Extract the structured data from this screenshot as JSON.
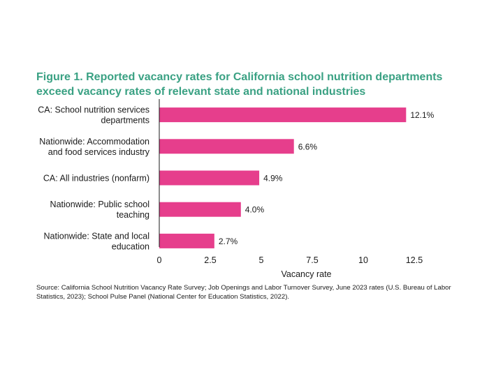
{
  "title_lines": [
    "Figure 1. Reported vacancy rates for California school nutrition departments",
    "exceed vacancy rates of relevant state and national industries"
  ],
  "source": "Source: California School Nutrition Vacancy Rate Survey; Job Openings and Labor Turnover Survey, June 2023 rates (U.S. Bureau of Labor Statistics, 2023); School Pulse Panel (National Center for Education Statistics, 2022).",
  "colors": {
    "bar": "#e63e8c",
    "title": "#3aa183",
    "axis": "#1a1a1a"
  },
  "chart_data": {
    "type": "bar",
    "orientation": "horizontal",
    "categories": [
      [
        "CA: School nutrition services",
        "departments"
      ],
      [
        "Nationwide: Accommodation",
        "and food services industry"
      ],
      [
        "CA: All industries (nonfarm)"
      ],
      [
        "Nationwide: Public school",
        "teaching"
      ],
      [
        "Nationwide: State and local",
        "education"
      ]
    ],
    "values": [
      12.1,
      6.6,
      4.9,
      4.0,
      2.7
    ],
    "value_labels": [
      "12.1%",
      "6.6%",
      "4.9%",
      "4.0%",
      "2.7%"
    ],
    "xlabel": "Vacancy rate",
    "ylabel": "",
    "xlim": [
      0,
      12.5
    ],
    "xticks": [
      0,
      2.5,
      5,
      7.5,
      10,
      12.5
    ],
    "xtick_labels": [
      "0",
      "2.5",
      "5",
      "7.5",
      "10",
      "12.5"
    ],
    "grid": false
  }
}
